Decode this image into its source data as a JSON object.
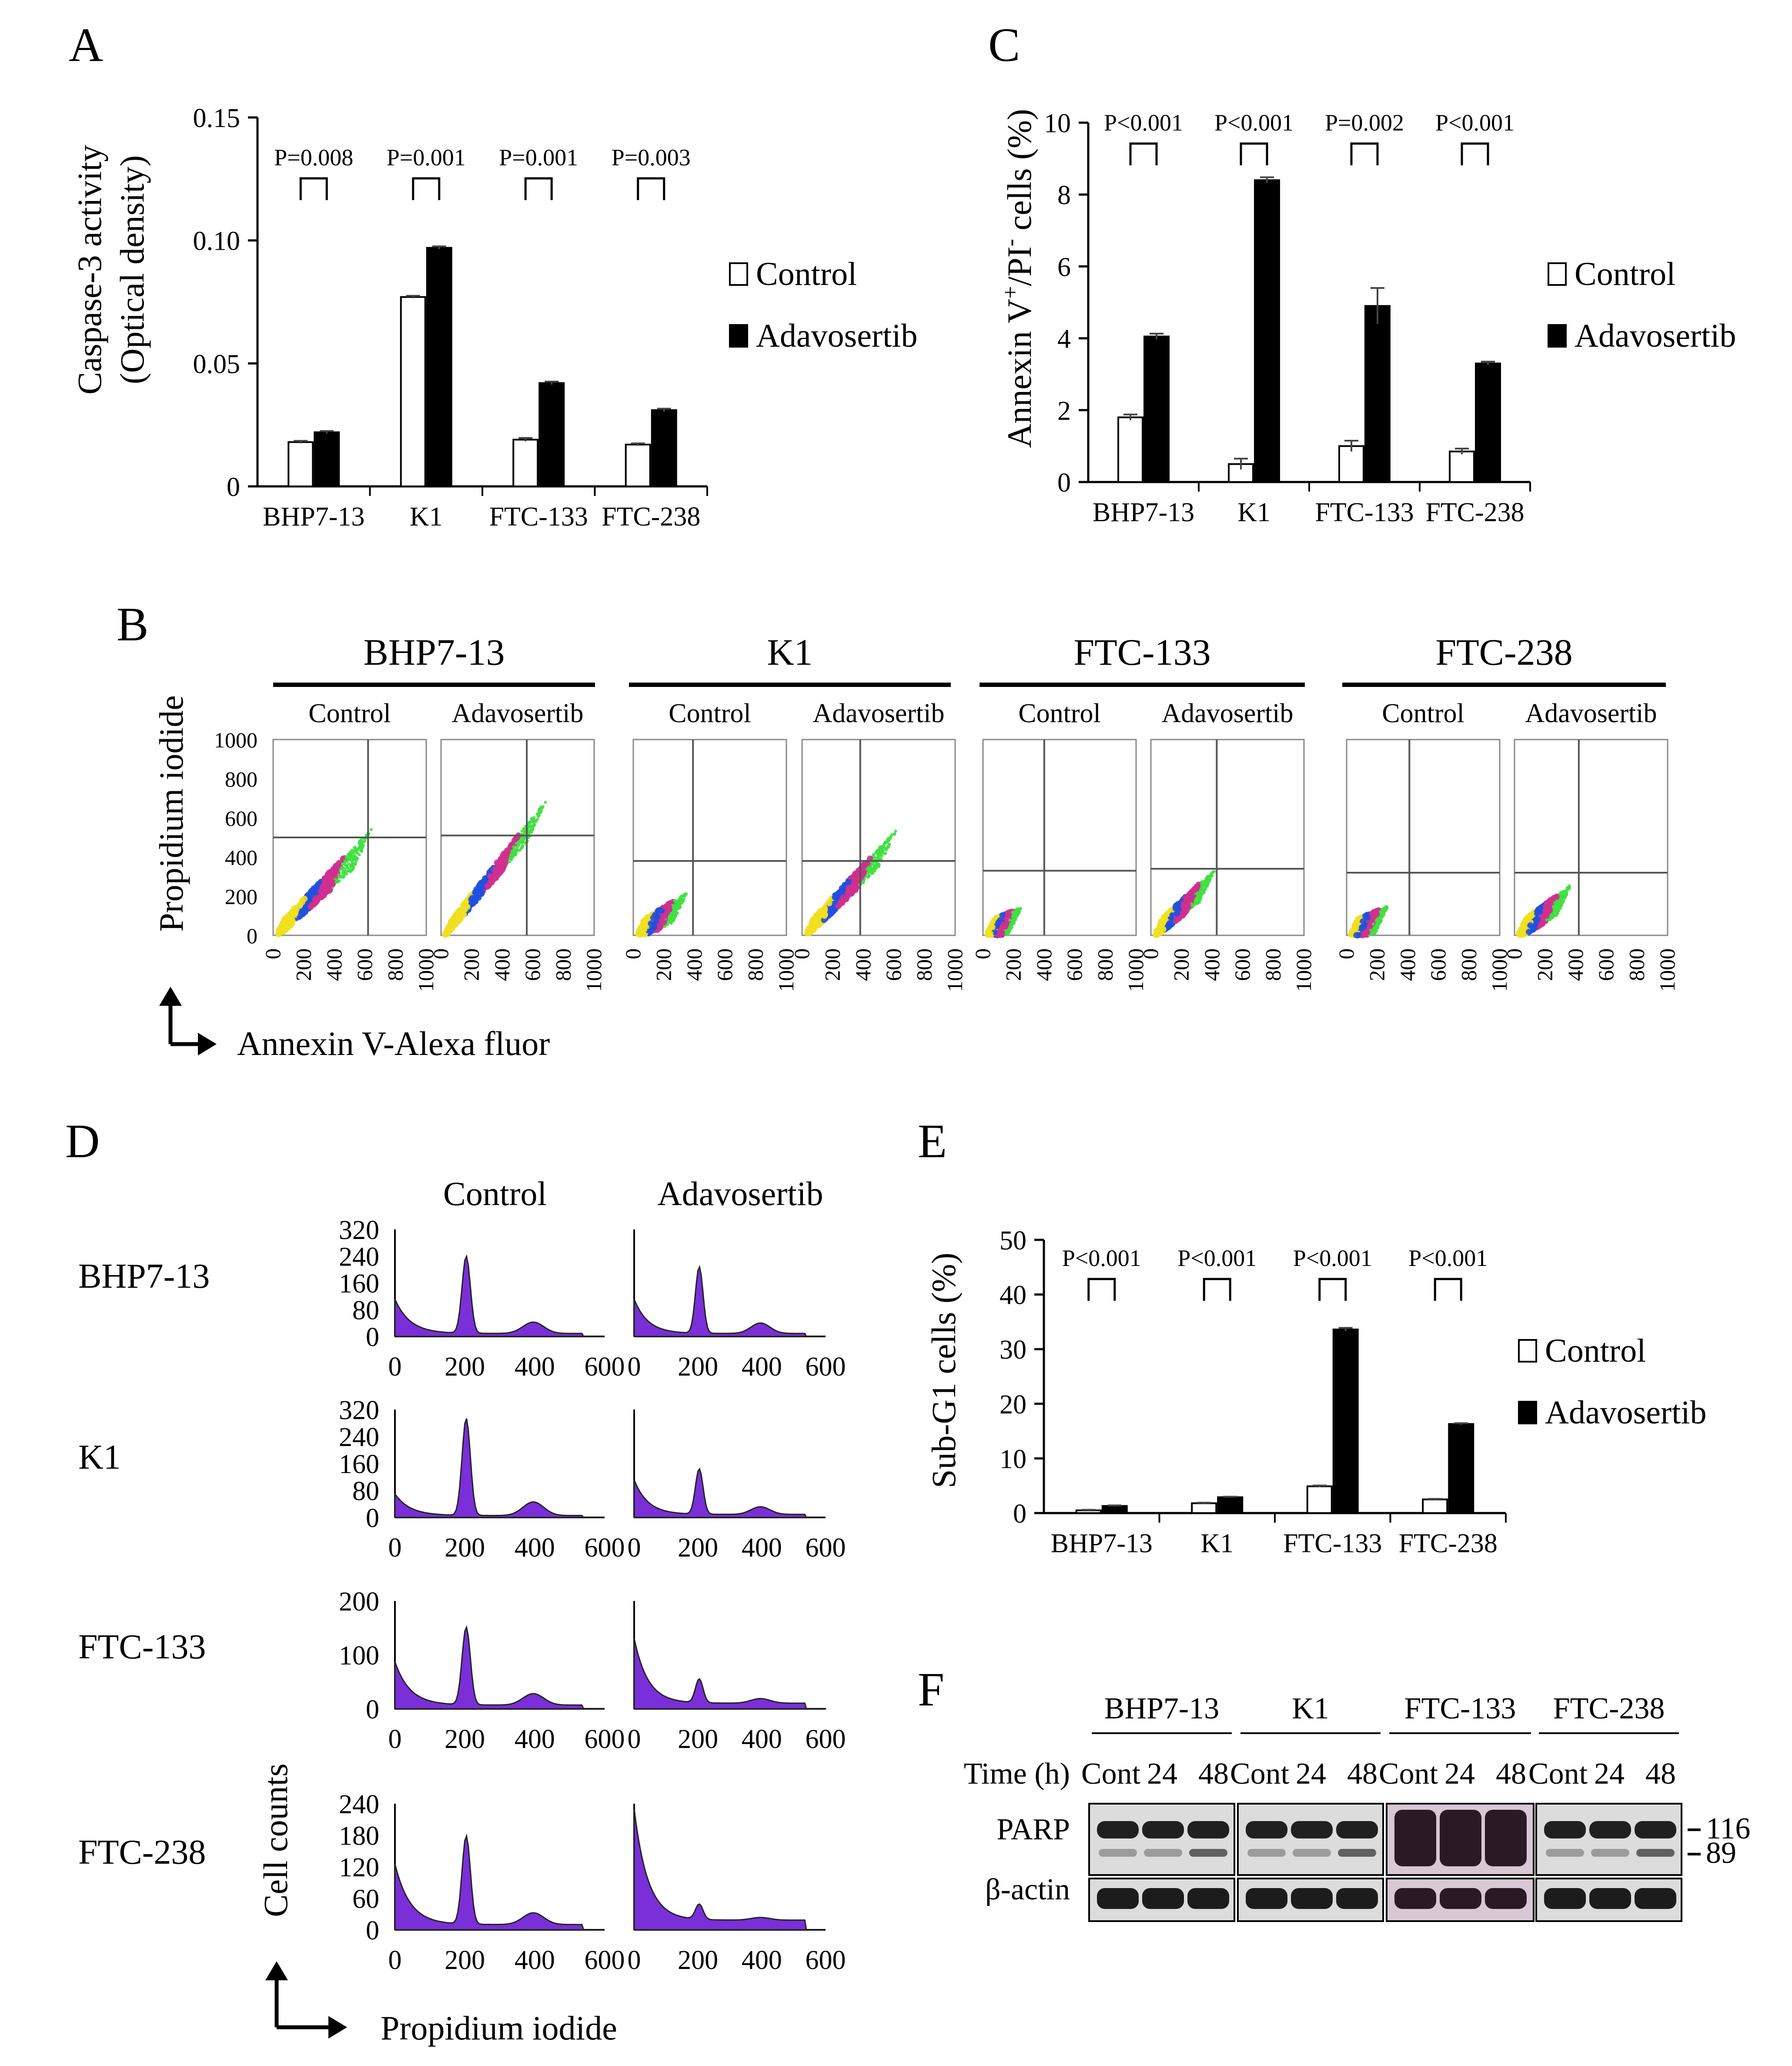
{
  "panels": {
    "A": {
      "letter": "A"
    },
    "B": {
      "letter": "B"
    },
    "C": {
      "letter": "C"
    },
    "D": {
      "letter": "D"
    },
    "E": {
      "letter": "E"
    },
    "F": {
      "letter": "F"
    }
  },
  "chart_data": [
    {
      "id": "A",
      "type": "bar",
      "categories": [
        "BHP7-13",
        "K1",
        "FTC-133",
        "FTC-238"
      ],
      "series": [
        {
          "name": "Control",
          "values": [
            0.018,
            0.077,
            0.019,
            0.017
          ],
          "color": "#ffffff"
        },
        {
          "name": "Adavosertib",
          "values": [
            0.022,
            0.097,
            0.042,
            0.031
          ],
          "color": "#000000"
        }
      ],
      "errors": [
        [
          0.0005,
          0.0005,
          0.0007,
          0.0005
        ],
        [
          0.0005,
          0.0006,
          0.0006,
          0.0006
        ]
      ],
      "ylabel_line1": "Caspase-3 activity",
      "ylabel_line2": "(Optical density)",
      "yticks": [
        "0",
        "0.05",
        "0.10",
        "0.15"
      ],
      "ylim": [
        0,
        0.15
      ],
      "pvalues": [
        "P=0.008",
        "P=0.001",
        "P=0.001",
        "P=0.003"
      ],
      "legend": "right"
    },
    {
      "id": "C",
      "type": "bar",
      "categories": [
        "BHP7-13",
        "K1",
        "FTC-133",
        "FTC-238"
      ],
      "series": [
        {
          "name": "Control",
          "values": [
            1.8,
            0.5,
            1.0,
            0.85
          ],
          "color": "#ffffff"
        },
        {
          "name": "Adavosertib",
          "values": [
            4.05,
            8.4,
            4.9,
            3.3
          ],
          "color": "#000000"
        }
      ],
      "errors": [
        [
          0.08,
          0.15,
          0.15,
          0.08
        ],
        [
          0.08,
          0.08,
          0.5,
          0.05
        ]
      ],
      "ylabel_main": "Annexin V",
      "ylabel_sup1": "+",
      "ylabel_mid": "/PI",
      "ylabel_sup2": "-",
      "ylabel_end": " cells (%)",
      "yticks": [
        "0",
        "2",
        "4",
        "6",
        "8",
        "10"
      ],
      "ylim": [
        0,
        10
      ],
      "pvalues": [
        "P<0.001",
        "P<0.001",
        "P=0.002",
        "P<0.001"
      ],
      "legend": "right"
    },
    {
      "id": "E",
      "type": "bar",
      "categories": [
        "BHP7-13",
        "K1",
        "FTC-133",
        "FTC-238"
      ],
      "series": [
        {
          "name": "Control",
          "values": [
            0.5,
            1.8,
            4.9,
            2.5
          ],
          "color": "#ffffff"
        },
        {
          "name": "Adavosertib",
          "values": [
            1.3,
            2.9,
            33.6,
            16.3
          ],
          "color": "#000000"
        }
      ],
      "errors": [
        [
          0.1,
          0.1,
          0.15,
          0.1
        ],
        [
          0.1,
          0.1,
          0.3,
          0.15
        ]
      ],
      "ylabel": "Sub-G1 cells (%)",
      "yticks": [
        "0",
        "10",
        "20",
        "30",
        "40",
        "50"
      ],
      "ylim": [
        0,
        50
      ],
      "pvalues": [
        "P<0.001",
        "P<0.001",
        "P<0.001",
        "P<0.001"
      ],
      "legend": "right"
    },
    {
      "id": "B",
      "type": "scatter",
      "cell_lines": [
        "BHP7-13",
        "K1",
        "FTC-133",
        "FTC-238"
      ],
      "conditions": [
        "Control",
        "Adavosertib"
      ],
      "xlabel": "Annexin V-Alexa fluor",
      "ylabel": "Propidium iodide",
      "xticks": [
        "0",
        "200",
        "400",
        "600",
        "800",
        "1000"
      ],
      "yticks": [
        "0",
        "200",
        "400",
        "600",
        "800",
        "1000"
      ],
      "xlim": [
        0,
        1000
      ],
      "ylim": [
        0,
        1000
      ],
      "quadrant_gates": [
        {
          "x": 620,
          "y": 500
        },
        {
          "x": 560,
          "y": 510
        },
        {
          "x": 390,
          "y": 380
        },
        {
          "x": 380,
          "y": 380
        },
        {
          "x": 400,
          "y": 330
        },
        {
          "x": 430,
          "y": 340
        },
        {
          "x": 410,
          "y": 320
        },
        {
          "x": 420,
          "y": 320
        }
      ]
    },
    {
      "id": "D",
      "type": "area",
      "cell_lines": [
        "BHP7-13",
        "K1",
        "FTC-133",
        "FTC-238"
      ],
      "conditions": [
        "Control",
        "Adavosertib"
      ],
      "xlabel": "Propidium iodide",
      "ylabel": "Cell counts",
      "xticks": [
        "0",
        "200",
        "400",
        "600"
      ],
      "xlim": [
        0,
        600
      ],
      "row_yticks": [
        [
          "0",
          "80",
          "160",
          "240",
          "320"
        ],
        [
          "0",
          "80",
          "160",
          "240",
          "320"
        ],
        [
          "0",
          "100",
          "200"
        ],
        [
          "0",
          "60",
          "120",
          "180",
          "240"
        ]
      ],
      "row_ylim": [
        [
          0,
          320
        ],
        [
          0,
          320
        ],
        [
          0,
          200
        ],
        [
          0,
          240
        ]
      ]
    }
  ],
  "western": {
    "title": "F",
    "cell_lines": [
      "BHP7-13",
      "K1",
      "FTC-133",
      "FTC-238"
    ],
    "time_label": "Time (h)",
    "lane_labels": [
      "Cont",
      "24",
      "48"
    ],
    "rows": [
      "PARP",
      "β-actin"
    ],
    "markers": [
      "116",
      "89"
    ]
  }
}
